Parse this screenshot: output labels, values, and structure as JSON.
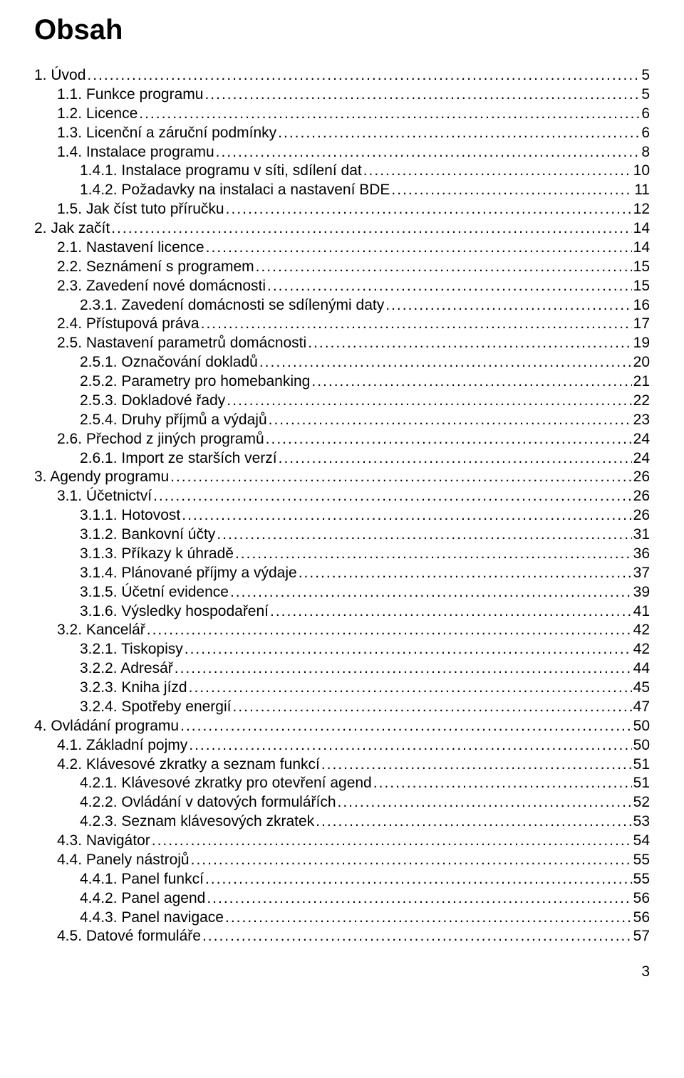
{
  "title": "Obsah",
  "page_number": "3",
  "colors": {
    "text": "#000000",
    "background": "#ffffff"
  },
  "typography": {
    "title_fontsize_pt": 30,
    "body_fontsize_pt": 16,
    "font_family": "Arial"
  },
  "toc": [
    {
      "indent": 0,
      "label": "1. Úvod",
      "page": "5"
    },
    {
      "indent": 1,
      "label": "1.1. Funkce programu",
      "page": "5"
    },
    {
      "indent": 1,
      "label": "1.2. Licence",
      "page": "6"
    },
    {
      "indent": 1,
      "label": "1.3. Licenční a záruční podmínky",
      "page": "6"
    },
    {
      "indent": 1,
      "label": "1.4. Instalace programu",
      "page": "8"
    },
    {
      "indent": 2,
      "label": "1.4.1. Instalace programu v síti, sdílení dat",
      "page": "10"
    },
    {
      "indent": 2,
      "label": "1.4.2. Požadavky na instalaci a nastavení BDE",
      "page": "11"
    },
    {
      "indent": 1,
      "label": "1.5. Jak číst tuto příručku",
      "page": "12"
    },
    {
      "indent": 0,
      "label": "2. Jak začít",
      "page": "14"
    },
    {
      "indent": 1,
      "label": "2.1. Nastavení licence",
      "page": "14"
    },
    {
      "indent": 1,
      "label": "2.2. Seznámení s programem",
      "page": "15"
    },
    {
      "indent": 1,
      "label": "2.3. Zavedení nové domácnosti",
      "page": "15"
    },
    {
      "indent": 2,
      "label": "2.3.1. Zavedení domácnosti se sdílenými daty",
      "page": "16"
    },
    {
      "indent": 1,
      "label": "2.4. Přístupová práva",
      "page": "17"
    },
    {
      "indent": 1,
      "label": "2.5. Nastavení parametrů domácnosti",
      "page": "19"
    },
    {
      "indent": 2,
      "label": "2.5.1. Označování dokladů",
      "page": "20"
    },
    {
      "indent": 2,
      "label": "2.5.2. Parametry pro homebanking",
      "page": "21"
    },
    {
      "indent": 2,
      "label": "2.5.3. Dokladové řady",
      "page": "22"
    },
    {
      "indent": 2,
      "label": "2.5.4. Druhy příjmů a výdajů",
      "page": "23"
    },
    {
      "indent": 1,
      "label": "2.6. Přechod z jiných programů",
      "page": "24"
    },
    {
      "indent": 2,
      "label": "2.6.1. Import ze starších verzí",
      "page": "24"
    },
    {
      "indent": 0,
      "label": "3. Agendy programu",
      "page": "26"
    },
    {
      "indent": 1,
      "label": "3.1. Účetnictví",
      "page": "26"
    },
    {
      "indent": 2,
      "label": "3.1.1. Hotovost",
      "page": "26"
    },
    {
      "indent": 2,
      "label": "3.1.2. Bankovní účty",
      "page": "31"
    },
    {
      "indent": 2,
      "label": "3.1.3. Příkazy k úhradě",
      "page": "36"
    },
    {
      "indent": 2,
      "label": "3.1.4. Plánované příjmy a výdaje",
      "page": "37"
    },
    {
      "indent": 2,
      "label": "3.1.5. Účetní evidence",
      "page": "39"
    },
    {
      "indent": 2,
      "label": "3.1.6. Výsledky hospodaření",
      "page": "41"
    },
    {
      "indent": 1,
      "label": "3.2. Kancelář",
      "page": "42"
    },
    {
      "indent": 2,
      "label": "3.2.1. Tiskopisy",
      "page": "42"
    },
    {
      "indent": 2,
      "label": "3.2.2. Adresář",
      "page": "44"
    },
    {
      "indent": 2,
      "label": "3.2.3. Kniha jízd",
      "page": "45"
    },
    {
      "indent": 2,
      "label": "3.2.4. Spotřeby energií",
      "page": "47"
    },
    {
      "indent": 0,
      "label": "4. Ovládání programu",
      "page": "50"
    },
    {
      "indent": 1,
      "label": "4.1. Základní pojmy",
      "page": "50"
    },
    {
      "indent": 1,
      "label": "4.2. Klávesové zkratky a seznam funkcí",
      "page": "51"
    },
    {
      "indent": 2,
      "label": "4.2.1. Klávesové zkratky pro otevření agend",
      "page": "51"
    },
    {
      "indent": 2,
      "label": "4.2.2. Ovládání v datových formulářích",
      "page": "52"
    },
    {
      "indent": 2,
      "label": "4.2.3. Seznam klávesových zkratek",
      "page": "53"
    },
    {
      "indent": 1,
      "label": "4.3. Navigátor",
      "page": "54"
    },
    {
      "indent": 1,
      "label": "4.4. Panely nástrojů",
      "page": "55"
    },
    {
      "indent": 2,
      "label": "4.4.1. Panel funkcí",
      "page": "55"
    },
    {
      "indent": 2,
      "label": "4.4.2. Panel agend",
      "page": "56"
    },
    {
      "indent": 2,
      "label": "4.4.3. Panel navigace",
      "page": "56"
    },
    {
      "indent": 1,
      "label": "4.5. Datové formuláře",
      "page": "57"
    }
  ]
}
